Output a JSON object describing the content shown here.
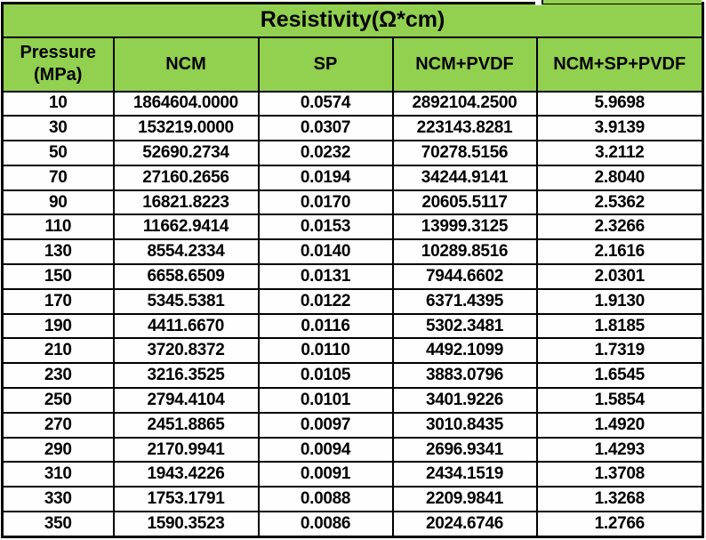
{
  "colors": {
    "header_green": "#92D050",
    "border_black": "#000000",
    "cell_white": "#FEFEFE",
    "text_black": "#000000"
  },
  "chart_data": {
    "type": "table",
    "title": "Resistivity(Ω*cm)",
    "columns": [
      "Pressure (MPa)",
      "NCM",
      "SP",
      "NCM+PVDF",
      "NCM+SP+PVDF"
    ],
    "pressure_unit": "MPa",
    "resistivity_unit": "Ω*cm",
    "rows": [
      [
        "10",
        "1864604.0000",
        "0.0574",
        "2892104.2500",
        "5.9698"
      ],
      [
        "30",
        "153219.0000",
        "0.0307",
        "223143.8281",
        "3.9139"
      ],
      [
        "50",
        "52690.2734",
        "0.0232",
        "70278.5156",
        "3.2112"
      ],
      [
        "70",
        "27160.2656",
        "0.0194",
        "34244.9141",
        "2.8040"
      ],
      [
        "90",
        "16821.8223",
        "0.0170",
        "20605.5117",
        "2.5362"
      ],
      [
        "110",
        "11662.9414",
        "0.0153",
        "13999.3125",
        "2.3266"
      ],
      [
        "130",
        "8554.2334",
        "0.0140",
        "10289.8516",
        "2.1616"
      ],
      [
        "150",
        "6658.6509",
        "0.0131",
        "7944.6602",
        "2.0301"
      ],
      [
        "170",
        "5345.5381",
        "0.0122",
        "6371.4395",
        "1.9130"
      ],
      [
        "190",
        "4411.6670",
        "0.0116",
        "5302.3481",
        "1.8185"
      ],
      [
        "210",
        "3720.8372",
        "0.0110",
        "4492.1099",
        "1.7319"
      ],
      [
        "230",
        "3216.3525",
        "0.0105",
        "3883.0796",
        "1.6545"
      ],
      [
        "250",
        "2794.4104",
        "0.0101",
        "3401.9226",
        "1.5854"
      ],
      [
        "270",
        "2451.8865",
        "0.0097",
        "3010.8435",
        "1.4920"
      ],
      [
        "290",
        "2170.9941",
        "0.0094",
        "2696.9341",
        "1.4293"
      ],
      [
        "310",
        "1943.4226",
        "0.0091",
        "2434.1519",
        "1.3708"
      ],
      [
        "330",
        "1753.1791",
        "0.0088",
        "2209.9841",
        "1.3268"
      ],
      [
        "350",
        "1590.3523",
        "0.0086",
        "2024.6746",
        "1.2766"
      ]
    ]
  }
}
